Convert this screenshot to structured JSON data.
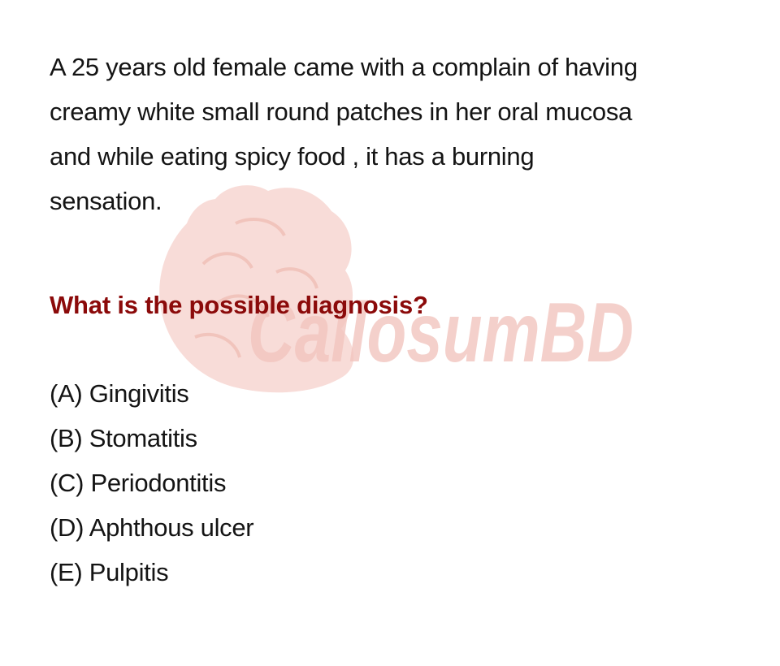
{
  "watermark": {
    "text": "CallosumBD",
    "color": "#f2c5bf"
  },
  "question": {
    "stem_lines": [
      "A 25 years old female came with a complain of having",
      "creamy white small round patches in her oral mucosa",
      "and while eating spicy food , it has a burning",
      "sensation."
    ],
    "prompt": "What is the possible diagnosis?",
    "prompt_color": "#8b0a0a",
    "options": [
      "(A) Gingivitis",
      "(B) Stomatitis",
      "(C) Periodontitis",
      "(D) Aphthous ulcer",
      "(E) Pulpitis"
    ]
  }
}
